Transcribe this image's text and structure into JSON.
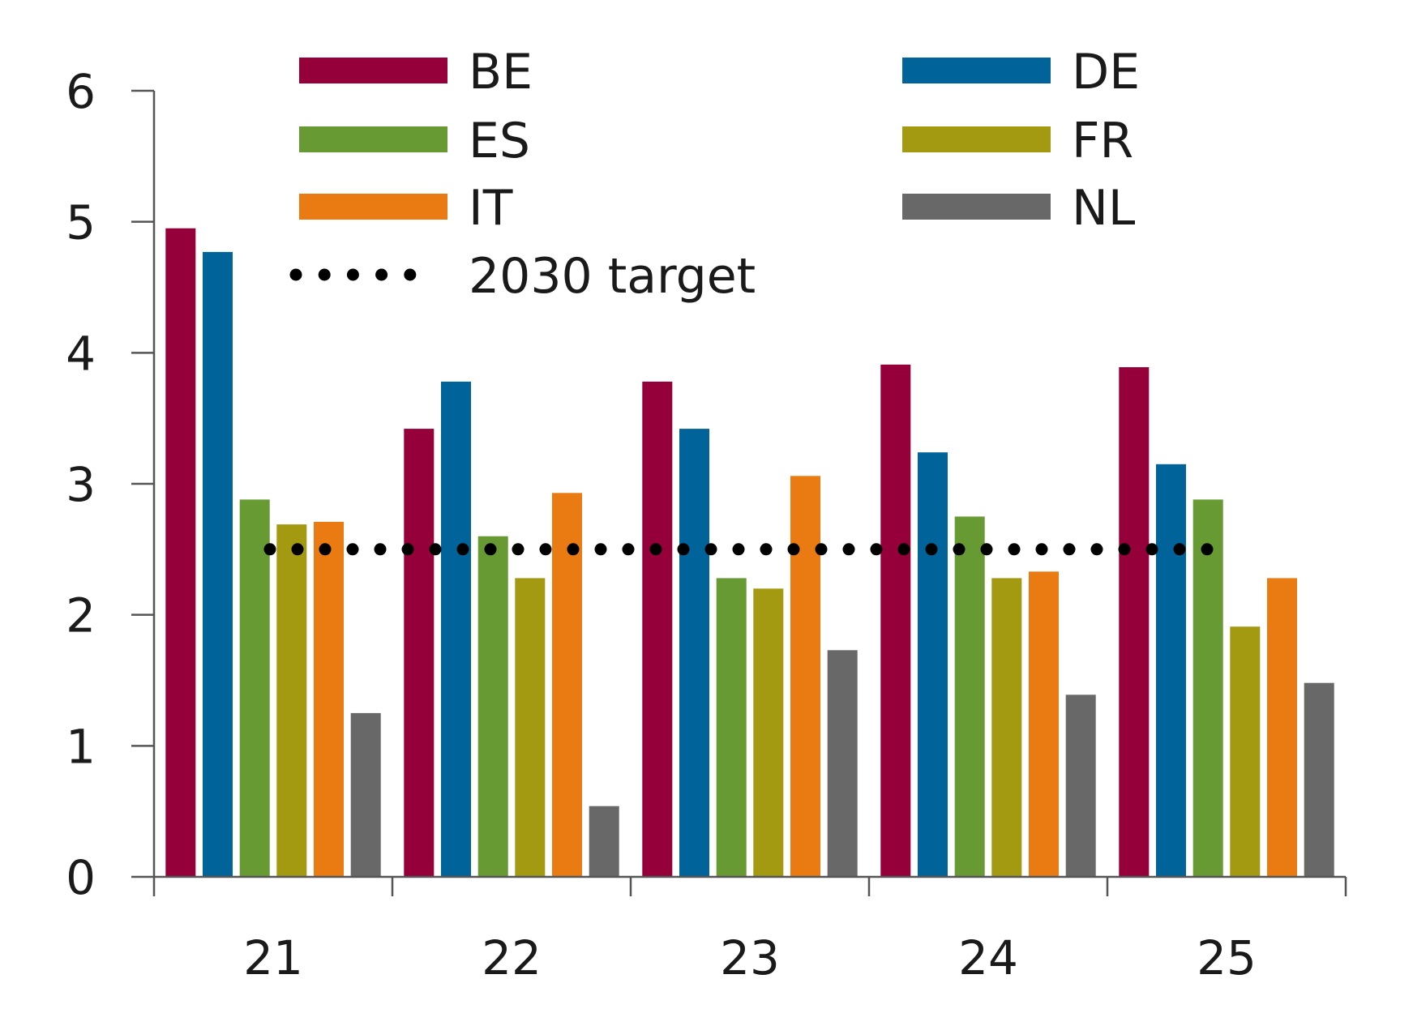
{
  "chart_data": {
    "type": "bar",
    "title": "",
    "xlabel": "",
    "ylabel": "",
    "categories": [
      "21",
      "22",
      "23",
      "24",
      "25"
    ],
    "ylim": [
      0,
      6
    ],
    "yticks": [
      "0",
      "1",
      "2",
      "3",
      "4",
      "5",
      "6"
    ],
    "grid": false,
    "legend_position": "top",
    "series": [
      {
        "name": "BE",
        "color": "#95003a",
        "values": [
          4.95,
          3.42,
          3.78,
          3.91,
          3.89
        ]
      },
      {
        "name": "DE",
        "color": "#006399",
        "values": [
          4.77,
          3.78,
          3.42,
          3.24,
          3.15
        ]
      },
      {
        "name": "ES",
        "color": "#689a34",
        "values": [
          2.88,
          2.6,
          2.28,
          2.75,
          2.88
        ]
      },
      {
        "name": "FR",
        "color": "#a39a12",
        "values": [
          2.69,
          2.28,
          2.2,
          2.28,
          1.91
        ]
      },
      {
        "name": "IT",
        "color": "#e97b12",
        "values": [
          2.71,
          2.93,
          3.06,
          2.33,
          2.28
        ]
      },
      {
        "name": "NL",
        "color": "#686868",
        "values": [
          1.25,
          0.54,
          1.73,
          1.39,
          1.48
        ]
      }
    ],
    "target": {
      "name": "2030 target",
      "value": 2.5,
      "color": "#000000",
      "style": "dotted"
    }
  }
}
